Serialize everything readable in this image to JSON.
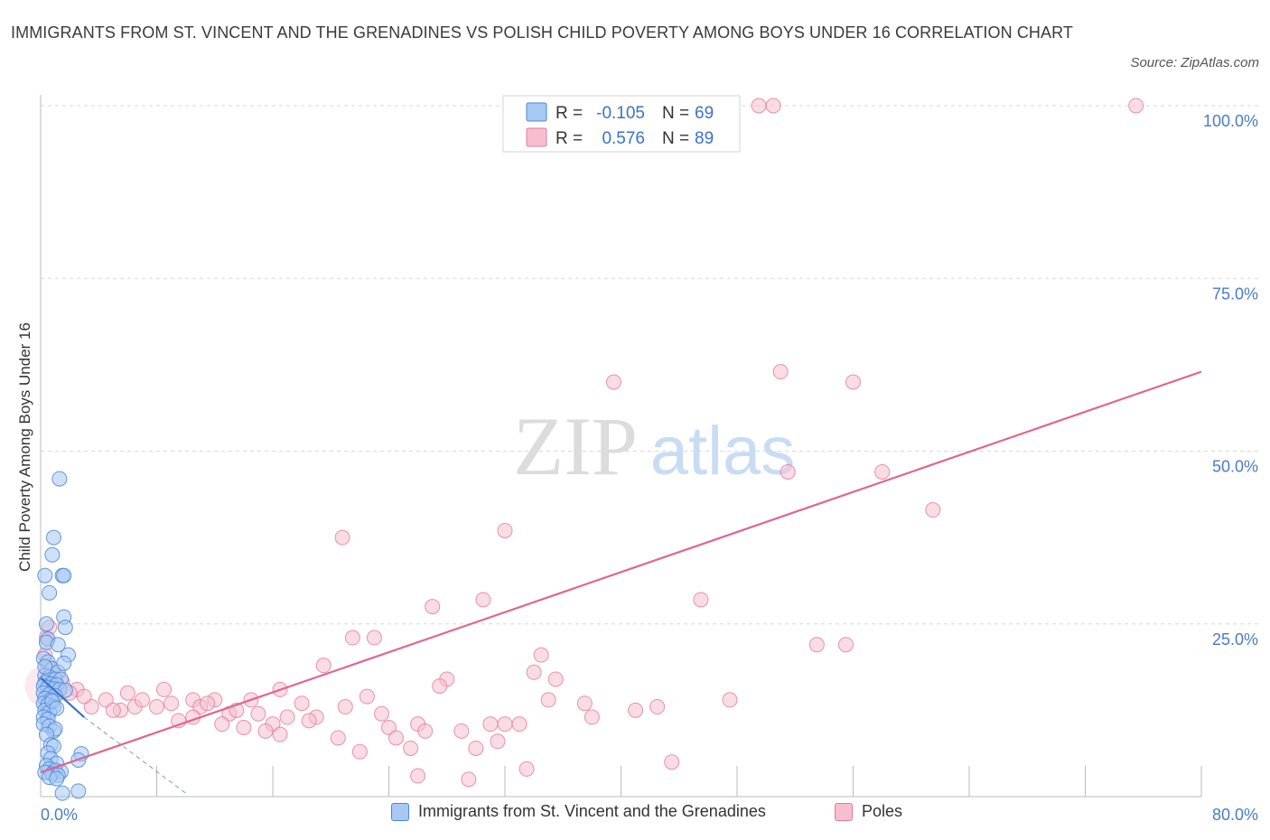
{
  "header": {
    "title": "IMMIGRANTS FROM ST. VINCENT AND THE GRENADINES VS POLISH CHILD POVERTY AMONG BOYS UNDER 16 CORRELATION CHART",
    "source": "Source: ZipAtlas.com"
  },
  "watermark": {
    "zip": "ZIP",
    "atlas": "atlas"
  },
  "legend_top": {
    "rows": [
      {
        "r_label": "R =",
        "r_value": "-0.105",
        "n_label": "N =",
        "n_value": "69"
      },
      {
        "r_label": "R =",
        "r_value": "0.576",
        "n_label": "N =",
        "n_value": "89"
      }
    ]
  },
  "colors": {
    "blue_fill": "#a8c8f4",
    "blue_stroke": "#4a87d8",
    "blue_line": "#3a72c8",
    "pink_fill": "#f6bfd0",
    "pink_stroke": "#e2799c",
    "pink_line": "#e0668f",
    "grid": "#d8d8d8",
    "axis_text": "#4a7cc4",
    "value_text": "#3a72c8"
  },
  "chart_data": {
    "type": "scatter",
    "title": "IMMIGRANTS FROM ST. VINCENT AND THE GRENADINES VS POLISH CHILD POVERTY AMONG BOYS UNDER 16 CORRELATION CHART",
    "xlabel": "",
    "ylabel": "Child Poverty Among Boys Under 16",
    "xlim": [
      0,
      80
    ],
    "ylim": [
      0,
      100
    ],
    "x_tick_labels": [
      "0.0%",
      "80.0%"
    ],
    "y_ticks": [
      25,
      50,
      75,
      100
    ],
    "y_tick_labels": [
      "25.0%",
      "50.0%",
      "75.0%",
      "100.0%"
    ],
    "grid": true,
    "legend_position": "top-center",
    "series": [
      {
        "name": "Immigrants from St. Vincent and the Grenadines",
        "color": "#4a87d8",
        "R": -0.105,
        "N": 69,
        "trend": {
          "x": [
            0,
            3.0
          ],
          "y": [
            17.2,
            11.5
          ],
          "style": "solid"
        },
        "trend_extension": {
          "x": [
            3.0,
            10.0
          ],
          "y": [
            11.5,
            0.5
          ],
          "style": "dashed"
        },
        "points": [
          [
            1.3,
            46.0
          ],
          [
            0.9,
            37.5
          ],
          [
            0.8,
            35.0
          ],
          [
            0.3,
            32.0
          ],
          [
            1.5,
            32.0
          ],
          [
            1.6,
            32.0
          ],
          [
            0.6,
            29.5
          ],
          [
            1.6,
            26.0
          ],
          [
            1.7,
            24.5
          ],
          [
            0.5,
            22.8
          ],
          [
            0.4,
            22.3
          ],
          [
            1.9,
            20.5
          ],
          [
            0.2,
            20.0
          ],
          [
            0.5,
            19.5
          ],
          [
            0.8,
            18.5
          ],
          [
            1.2,
            18.0
          ],
          [
            0.3,
            17.5
          ],
          [
            0.6,
            17.3
          ],
          [
            1.0,
            17.0
          ],
          [
            1.4,
            17.0
          ],
          [
            0.3,
            16.5
          ],
          [
            0.7,
            16.3
          ],
          [
            1.1,
            16.2
          ],
          [
            0.2,
            16.0
          ],
          [
            0.5,
            15.8
          ],
          [
            0.9,
            15.6
          ],
          [
            1.3,
            15.5
          ],
          [
            1.7,
            15.4
          ],
          [
            0.2,
            15.0
          ],
          [
            0.6,
            14.8
          ],
          [
            1.0,
            14.6
          ],
          [
            0.3,
            14.2
          ],
          [
            0.7,
            14.0
          ],
          [
            0.2,
            13.5
          ],
          [
            0.5,
            13.3
          ],
          [
            0.9,
            13.0
          ],
          [
            0.3,
            12.5
          ],
          [
            0.6,
            12.2
          ],
          [
            0.2,
            11.5
          ],
          [
            0.5,
            11.2
          ],
          [
            0.2,
            10.5
          ],
          [
            0.6,
            10.2
          ],
          [
            0.9,
            9.5
          ],
          [
            1.0,
            9.8
          ],
          [
            0.4,
            9.0
          ],
          [
            0.7,
            7.5
          ],
          [
            0.9,
            7.3
          ],
          [
            0.5,
            6.3
          ],
          [
            2.8,
            6.2
          ],
          [
            0.7,
            5.5
          ],
          [
            2.6,
            5.3
          ],
          [
            1.1,
            4.8
          ],
          [
            0.4,
            4.5
          ],
          [
            0.6,
            4.0
          ],
          [
            1.0,
            3.8
          ],
          [
            1.4,
            3.6
          ],
          [
            0.3,
            3.5
          ],
          [
            0.8,
            3.3
          ],
          [
            1.2,
            3.1
          ],
          [
            0.6,
            2.8
          ],
          [
            1.1,
            2.6
          ],
          [
            2.6,
            0.8
          ],
          [
            1.5,
            0.5
          ],
          [
            0.4,
            25.0
          ],
          [
            1.2,
            22.0
          ],
          [
            0.3,
            18.8
          ],
          [
            1.6,
            19.3
          ],
          [
            0.8,
            13.8
          ],
          [
            1.1,
            12.8
          ]
        ]
      },
      {
        "name": "Poles",
        "color": "#e2799c",
        "R": 0.576,
        "N": 89,
        "trend": {
          "x": [
            0,
            80
          ],
          "y": [
            3.5,
            61.5
          ],
          "style": "solid"
        },
        "points": [
          [
            49.5,
            100
          ],
          [
            50.5,
            100
          ],
          [
            75.5,
            100
          ],
          [
            39.5,
            60.0
          ],
          [
            51.0,
            61.5
          ],
          [
            56.0,
            60.0
          ],
          [
            51.5,
            47.0
          ],
          [
            58.0,
            47.0
          ],
          [
            61.5,
            41.5
          ],
          [
            20.8,
            37.5
          ],
          [
            32.0,
            38.5
          ],
          [
            27.0,
            27.5
          ],
          [
            30.5,
            28.5
          ],
          [
            45.5,
            28.5
          ],
          [
            21.5,
            23.0
          ],
          [
            23.0,
            23.0
          ],
          [
            53.5,
            22.0
          ],
          [
            55.5,
            22.0
          ],
          [
            34.5,
            20.5
          ],
          [
            19.5,
            19.0
          ],
          [
            34.0,
            18.0
          ],
          [
            28.0,
            17.0
          ],
          [
            27.5,
            16.0
          ],
          [
            35.5,
            17.0
          ],
          [
            16.5,
            15.5
          ],
          [
            22.5,
            14.5
          ],
          [
            35.0,
            14.0
          ],
          [
            37.5,
            13.5
          ],
          [
            42.5,
            13.0
          ],
          [
            47.5,
            14.0
          ],
          [
            8.5,
            15.5
          ],
          [
            10.5,
            14.0
          ],
          [
            12.0,
            14.0
          ],
          [
            14.5,
            14.0
          ],
          [
            18.0,
            13.5
          ],
          [
            11.0,
            13.0
          ],
          [
            6.5,
            13.0
          ],
          [
            9.0,
            13.5
          ],
          [
            13.0,
            12.0
          ],
          [
            15.0,
            12.0
          ],
          [
            17.0,
            11.5
          ],
          [
            19.0,
            11.5
          ],
          [
            23.5,
            12.0
          ],
          [
            26.0,
            10.5
          ],
          [
            32.0,
            10.5
          ],
          [
            38.0,
            11.5
          ],
          [
            9.5,
            11.0
          ],
          [
            10.5,
            11.5
          ],
          [
            12.5,
            10.5
          ],
          [
            14.0,
            10.0
          ],
          [
            16.0,
            10.5
          ],
          [
            18.5,
            11.0
          ],
          [
            20.5,
            8.5
          ],
          [
            24.0,
            10.0
          ],
          [
            24.5,
            8.5
          ],
          [
            26.5,
            9.5
          ],
          [
            29.0,
            9.5
          ],
          [
            31.0,
            10.5
          ],
          [
            33.0,
            10.5
          ],
          [
            30.0,
            7.0
          ],
          [
            31.5,
            8.0
          ],
          [
            25.5,
            7.0
          ],
          [
            22.0,
            6.5
          ],
          [
            16.5,
            9.0
          ],
          [
            15.5,
            9.5
          ],
          [
            5.5,
            12.5
          ],
          [
            4.5,
            14.0
          ],
          [
            3.5,
            13.0
          ],
          [
            2.5,
            15.5
          ],
          [
            1.5,
            16.5
          ],
          [
            1.0,
            17.5
          ],
          [
            0.5,
            19.0
          ],
          [
            0.3,
            20.5
          ],
          [
            0.4,
            23.0
          ],
          [
            7.0,
            14.0
          ],
          [
            5.0,
            12.5
          ],
          [
            6.0,
            15.0
          ],
          [
            41.0,
            12.5
          ],
          [
            43.5,
            5.0
          ],
          [
            26.0,
            3.0
          ],
          [
            29.5,
            2.5
          ],
          [
            33.5,
            4.0
          ],
          [
            21.0,
            13.0
          ],
          [
            13.5,
            12.5
          ],
          [
            11.5,
            13.5
          ],
          [
            3.0,
            14.5
          ],
          [
            2.0,
            15.0
          ],
          [
            8.0,
            13.0
          ],
          [
            0.6,
            24.5
          ]
        ]
      }
    ]
  },
  "legend_bottom": [
    {
      "label": "Immigrants from St. Vincent and the Grenadines"
    },
    {
      "label": "Poles"
    }
  ]
}
